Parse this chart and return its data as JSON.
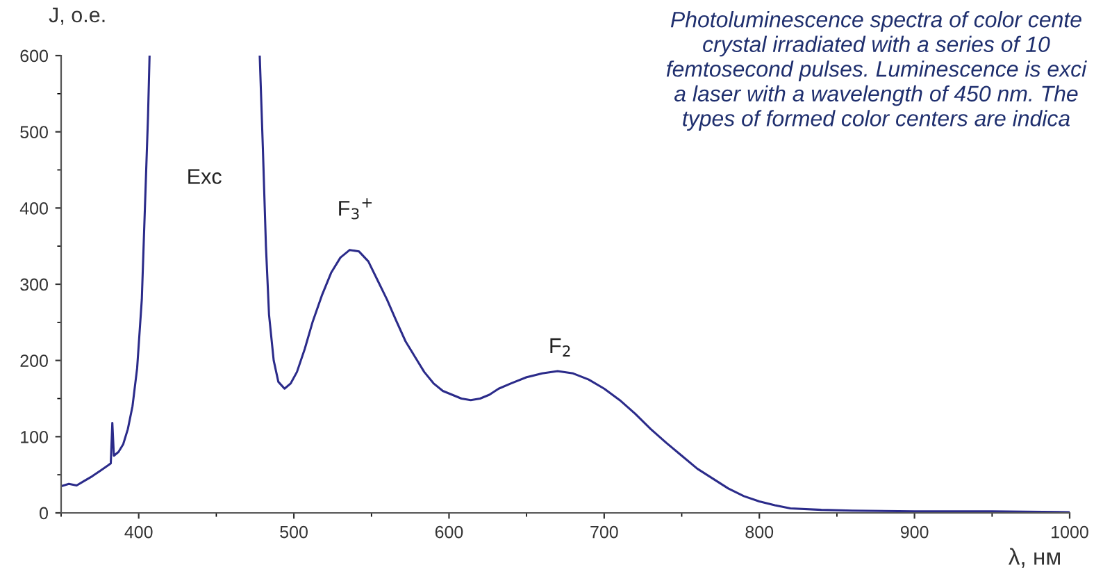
{
  "chart_data": {
    "type": "line",
    "xlabel": "λ, нм",
    "ylabel": "J, o.e.",
    "x": [
      350,
      355,
      360,
      365,
      370,
      375,
      380,
      382,
      383,
      384,
      387,
      390,
      393,
      396,
      399,
      402,
      404,
      406,
      407,
      440,
      478,
      480,
      482,
      484,
      487,
      490,
      494,
      498,
      502,
      507,
      512,
      518,
      524,
      530,
      536,
      542,
      548,
      554,
      560,
      566,
      572,
      578,
      584,
      590,
      596,
      602,
      608,
      614,
      620,
      626,
      632,
      640,
      650,
      660,
      670,
      680,
      690,
      700,
      710,
      720,
      730,
      740,
      750,
      760,
      770,
      780,
      790,
      800,
      810,
      820,
      840,
      860,
      900,
      950,
      1000
    ],
    "series": [
      {
        "color": "#2b2b8a",
        "values": [
          35,
          38,
          36,
          42,
          48,
          55,
          62,
          65,
          118,
          75,
          80,
          90,
          110,
          140,
          190,
          280,
          400,
          520,
          600,
          null,
          600,
          480,
          350,
          260,
          200,
          172,
          163,
          170,
          185,
          215,
          250,
          285,
          315,
          335,
          345,
          343,
          330,
          305,
          280,
          252,
          225,
          205,
          185,
          170,
          160,
          155,
          150,
          148,
          150,
          155,
          163,
          170,
          178,
          183,
          186,
          183,
          175,
          163,
          148,
          130,
          110,
          92,
          75,
          58,
          45,
          32,
          22,
          15,
          10,
          6,
          4,
          3,
          2,
          2,
          1
        ]
      }
    ],
    "xlim": [
      350,
      1000
    ],
    "ylim": [
      0,
      600
    ],
    "xticks": [
      400,
      500,
      600,
      700,
      800,
      900,
      1000
    ],
    "yticks": [
      0,
      100,
      200,
      300,
      400,
      500,
      600
    ],
    "grid": false,
    "legend": false,
    "marker": "none",
    "line_style": "solid",
    "annotations": [
      "Exc",
      "F$_{3}$$^{+}$",
      "F$_{2}$",
      "Photoluminescence spectra of color cente\ncrystal irradiated with a series of 10\nfemtosecond pulses. Luminescence is exci\na laser with a wavelength of 450 nm. The\ntypes of formed color centers are indica"
    ]
  }
}
